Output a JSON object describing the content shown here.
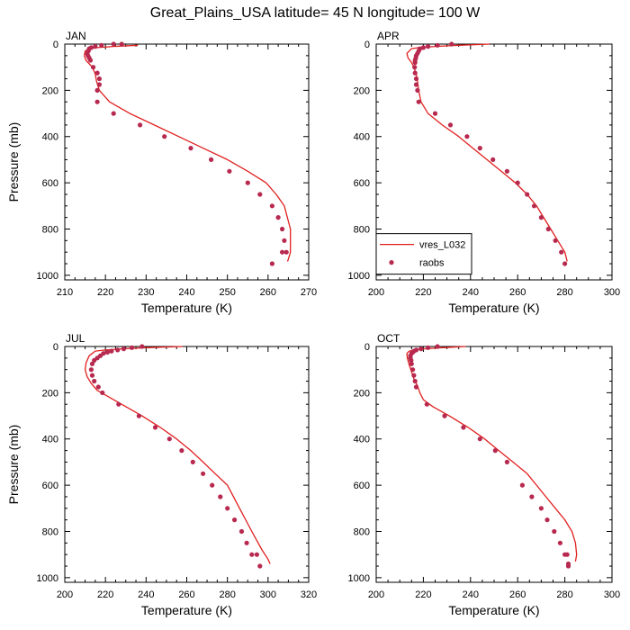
{
  "title": "Great_Plains_USA  latitude= 45 N longitude= 100 W",
  "colors": {
    "model_line": "#e0201f",
    "obs_marker": "#b8294f",
    "frame": "#000000"
  },
  "legend": {
    "entries": [
      {
        "label": "vres_L032",
        "kind": "line"
      },
      {
        "label": "raobs",
        "kind": "marker"
      }
    ],
    "panel": "APR",
    "placement": "bottom-left"
  },
  "chart_data": [
    {
      "type": "line",
      "label": "JAN",
      "xlabel": "Temperature (K)",
      "ylabel": "Pressure (mb)",
      "xlim": [
        210,
        270
      ],
      "ylim": [
        0,
        1020
      ],
      "y_reversed": true,
      "xticks": [
        210,
        220,
        230,
        240,
        250,
        260,
        270
      ],
      "yticks": [
        0,
        200,
        400,
        600,
        800,
        1000
      ],
      "grid": false,
      "series": [
        {
          "name": "vres_L032",
          "kind": "line",
          "x": [
            228,
            222,
            218,
            216,
            215,
            214.8,
            215.2,
            216.8,
            217.5,
            217.8,
            218.5,
            221,
            226,
            232,
            238,
            244,
            250,
            255,
            259.5,
            262,
            264,
            265.5,
            265.5,
            265,
            264.8
          ],
          "y": [
            5,
            10,
            15,
            20,
            30,
            50,
            70,
            100,
            130,
            160,
            200,
            250,
            300,
            350,
            400,
            450,
            500,
            550,
            600,
            650,
            700,
            800,
            900,
            930,
            940
          ]
        },
        {
          "name": "raobs",
          "kind": "marker",
          "x": [
            224,
            222,
            219,
            217.5,
            216.5,
            216,
            215.8,
            215.5,
            215.7,
            216,
            216.3,
            217,
            218,
            218.5,
            218.5,
            218,
            218,
            222,
            228.5,
            234.5,
            241,
            246,
            250.5,
            255,
            258,
            261,
            262.5,
            263.5,
            264,
            264.5,
            263.5,
            261
          ],
          "y": [
            0,
            0,
            5,
            10,
            15,
            20,
            30,
            40,
            50,
            60,
            70,
            100,
            125,
            150,
            175,
            200,
            250,
            300,
            350,
            400,
            450,
            500,
            550,
            600,
            650,
            700,
            750,
            800,
            850,
            900,
            900,
            950
          ]
        }
      ]
    },
    {
      "type": "line",
      "label": "APR",
      "xlabel": "Temperature (K)",
      "ylabel": "",
      "xlim": [
        200,
        300
      ],
      "ylim": [
        0,
        1020
      ],
      "y_reversed": true,
      "xticks": [
        200,
        220,
        240,
        260,
        280,
        300
      ],
      "yticks": [
        0,
        200,
        400,
        600,
        800,
        1000
      ],
      "grid": false,
      "series": [
        {
          "name": "vres_L032",
          "kind": "line",
          "x": [
            248,
            235,
            225,
            218,
            215,
            213,
            213.5,
            215,
            216,
            217,
            217.5,
            218,
            219,
            222,
            228,
            235,
            241,
            247,
            253,
            259,
            264,
            268,
            271,
            274,
            277,
            280,
            281
          ],
          "y": [
            0,
            5,
            10,
            15,
            20,
            40,
            60,
            80,
            100,
            130,
            160,
            200,
            250,
            300,
            350,
            400,
            450,
            500,
            550,
            600,
            650,
            700,
            750,
            800,
            850,
            900,
            940
          ]
        },
        {
          "name": "raobs",
          "kind": "marker",
          "x": [
            232,
            226,
            222,
            220,
            218.5,
            218,
            217.5,
            217,
            216.8,
            216.5,
            216.5,
            216.3,
            216.5,
            217,
            217,
            217.5,
            218,
            225,
            231.5,
            238.5,
            244,
            249.5,
            255.5,
            260,
            264,
            267,
            270,
            273,
            276,
            278.5,
            280
          ],
          "y": [
            0,
            5,
            10,
            15,
            20,
            30,
            40,
            50,
            60,
            70,
            80,
            100,
            125,
            150,
            175,
            200,
            250,
            300,
            350,
            400,
            450,
            500,
            550,
            600,
            650,
            700,
            750,
            800,
            850,
            900,
            950
          ]
        }
      ]
    },
    {
      "type": "line",
      "label": "JUL",
      "xlabel": "Temperature (K)",
      "ylabel": "Pressure (mb)",
      "xlim": [
        200,
        320
      ],
      "ylim": [
        0,
        1020
      ],
      "y_reversed": true,
      "xticks": [
        200,
        220,
        240,
        260,
        280,
        300,
        320
      ],
      "yticks": [
        0,
        200,
        400,
        600,
        800,
        1000
      ],
      "grid": false,
      "series": [
        {
          "name": "vres_L032",
          "kind": "line",
          "x": [
            258,
            240,
            228,
            220,
            215,
            212,
            210.5,
            210,
            211,
            213,
            216,
            220,
            228,
            238,
            247,
            255,
            262,
            268,
            274,
            280,
            286,
            292,
            297,
            300,
            301
          ],
          "y": [
            0,
            5,
            10,
            15,
            20,
            40,
            70,
            100,
            130,
            160,
            190,
            210,
            250,
            300,
            350,
            400,
            450,
            500,
            550,
            600,
            700,
            800,
            880,
            920,
            940
          ]
        },
        {
          "name": "raobs",
          "kind": "marker",
          "x": [
            238,
            233,
            229,
            226,
            223,
            221,
            219,
            217.5,
            216,
            214.5,
            213.5,
            213,
            213.5,
            214.5,
            216.5,
            218.5,
            226.5,
            236.5,
            244.5,
            251.5,
            257.5,
            263,
            268,
            272.5,
            276.5,
            280,
            283.5,
            287,
            289.5,
            292,
            294.5,
            296
          ],
          "y": [
            0,
            5,
            10,
            15,
            20,
            25,
            30,
            40,
            50,
            60,
            75,
            100,
            125,
            150,
            175,
            200,
            250,
            300,
            350,
            400,
            450,
            500,
            550,
            600,
            650,
            700,
            750,
            800,
            850,
            900,
            900,
            950
          ]
        }
      ]
    },
    {
      "type": "line",
      "label": "OCT",
      "xlabel": "Temperature (K)",
      "ylabel": "",
      "xlim": [
        200,
        300
      ],
      "ylim": [
        0,
        1020
      ],
      "y_reversed": true,
      "xticks": [
        200,
        220,
        240,
        260,
        280,
        300
      ],
      "yticks": [
        0,
        200,
        400,
        600,
        800,
        1000
      ],
      "grid": false,
      "series": [
        {
          "name": "vres_L032",
          "kind": "line",
          "x": [
            238,
            228,
            220,
            216,
            214,
            213,
            213.2,
            214,
            215,
            216,
            217.5,
            218.5,
            220,
            224,
            231,
            239,
            246,
            252,
            258,
            264,
            268,
            272,
            276,
            280,
            283,
            284.5,
            285,
            284.5
          ],
          "y": [
            0,
            5,
            10,
            15,
            20,
            30,
            50,
            80,
            110,
            140,
            170,
            200,
            230,
            260,
            300,
            350,
            400,
            450,
            500,
            550,
            600,
            650,
            700,
            750,
            800,
            850,
            900,
            930
          ]
        },
        {
          "name": "raobs",
          "kind": "marker",
          "x": [
            226,
            222,
            219,
            217,
            216,
            215.5,
            215,
            214.5,
            214.5,
            214.8,
            215,
            215.5,
            216,
            216.5,
            217,
            221.5,
            229,
            237,
            244,
            250.5,
            255.5,
            262,
            266,
            270,
            272.5,
            275.5,
            278,
            280,
            281,
            281.5,
            281.5
          ],
          "y": [
            0,
            5,
            10,
            15,
            20,
            25,
            30,
            40,
            50,
            60,
            75,
            100,
            125,
            150,
            175,
            250,
            300,
            350,
            400,
            450,
            500,
            600,
            650,
            700,
            750,
            800,
            850,
            900,
            900,
            940,
            950
          ]
        }
      ]
    }
  ]
}
